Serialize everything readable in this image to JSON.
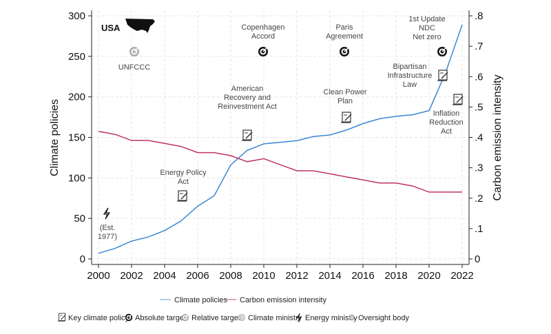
{
  "chart_data": {
    "type": "line",
    "x": [
      2000,
      2001,
      2002,
      2003,
      2004,
      2005,
      2006,
      2007,
      2008,
      2009,
      2010,
      2011,
      2012,
      2013,
      2014,
      2015,
      2016,
      2017,
      2018,
      2019,
      2020,
      2021,
      2022
    ],
    "series": [
      {
        "name": "Climate policies",
        "axis": "left",
        "color": "#3a87d4",
        "values": [
          7,
          13,
          22,
          27,
          35,
          47,
          65,
          78,
          116,
          134,
          142,
          144,
          146,
          151,
          153,
          159,
          167,
          173,
          176,
          178,
          183,
          230,
          289
        ]
      },
      {
        "name": "Carbon emission intensity",
        "axis": "right",
        "color": "#c0335e",
        "values": [
          0.42,
          0.41,
          0.39,
          0.39,
          0.38,
          0.37,
          0.35,
          0.35,
          0.34,
          0.32,
          0.33,
          0.31,
          0.29,
          0.29,
          0.28,
          0.27,
          0.26,
          0.25,
          0.25,
          0.24,
          0.22,
          0.22,
          0.22
        ]
      }
    ],
    "xlabel": "",
    "ylabel": "Climate policies",
    "ylabel_right": "Carbon emission intensity",
    "xlim": [
      2000,
      2022
    ],
    "ylim": [
      0,
      300
    ],
    "ylim_right": [
      0,
      0.8
    ],
    "xticks": [
      "2000",
      "2002",
      "2004",
      "2006",
      "2008",
      "2010",
      "2012",
      "2014",
      "2016",
      "2018",
      "2020",
      "2022"
    ],
    "yticks": [
      "0",
      "50",
      "100",
      "150",
      "200",
      "250",
      "300"
    ],
    "yticks_right": [
      "0",
      ".1",
      ".2",
      ".3",
      ".4",
      ".5",
      ".6",
      ".7",
      ".8"
    ],
    "grid": true,
    "legend_placement": "bottom",
    "country": "USA",
    "annotations": [
      {
        "id": "unfccc",
        "icon": "relative-target",
        "lines": [
          "UNFCCC"
        ]
      },
      {
        "id": "copenhagen",
        "icon": "absolute-target",
        "lines": [
          "Copenhagen",
          "Accord"
        ]
      },
      {
        "id": "paris",
        "icon": "absolute-target",
        "lines": [
          "Paris",
          "Agreement"
        ]
      },
      {
        "id": "ndc",
        "icon": "absolute-target",
        "lines": [
          "1st Update",
          "NDC",
          "Net zero"
        ]
      },
      {
        "id": "arra",
        "icon": "key-climate-policy",
        "lines": [
          "American",
          "Recovery and",
          "Reinvestment Act"
        ]
      },
      {
        "id": "cpp",
        "icon": "key-climate-policy",
        "lines": [
          "Clean Power",
          "Plan"
        ]
      },
      {
        "id": "bil",
        "icon": "key-climate-policy",
        "lines": [
          "Bipartisan",
          "Infrastructure",
          "Law"
        ]
      },
      {
        "id": "ira",
        "icon": "key-climate-policy",
        "lines": [
          "Inflation",
          "Reduction",
          "Act"
        ]
      },
      {
        "id": "epa",
        "icon": "key-climate-policy",
        "lines": [
          "Energy Policy",
          "Act"
        ]
      },
      {
        "id": "energy",
        "icon": "energy-ministry",
        "lines": [
          "(Est.",
          "1977)"
        ]
      }
    ],
    "icon_legend": [
      {
        "icon": "key-climate-policy",
        "label": "Key climate policy"
      },
      {
        "icon": "absolute-target",
        "label": "Absolute target"
      },
      {
        "icon": "relative-target",
        "label": "Relative target"
      },
      {
        "icon": "climate-ministry",
        "label": "Climate ministry"
      },
      {
        "icon": "energy-ministry",
        "label": "Energy ministry"
      },
      {
        "icon": "oversight-body",
        "label": "Oversight body"
      }
    ]
  }
}
